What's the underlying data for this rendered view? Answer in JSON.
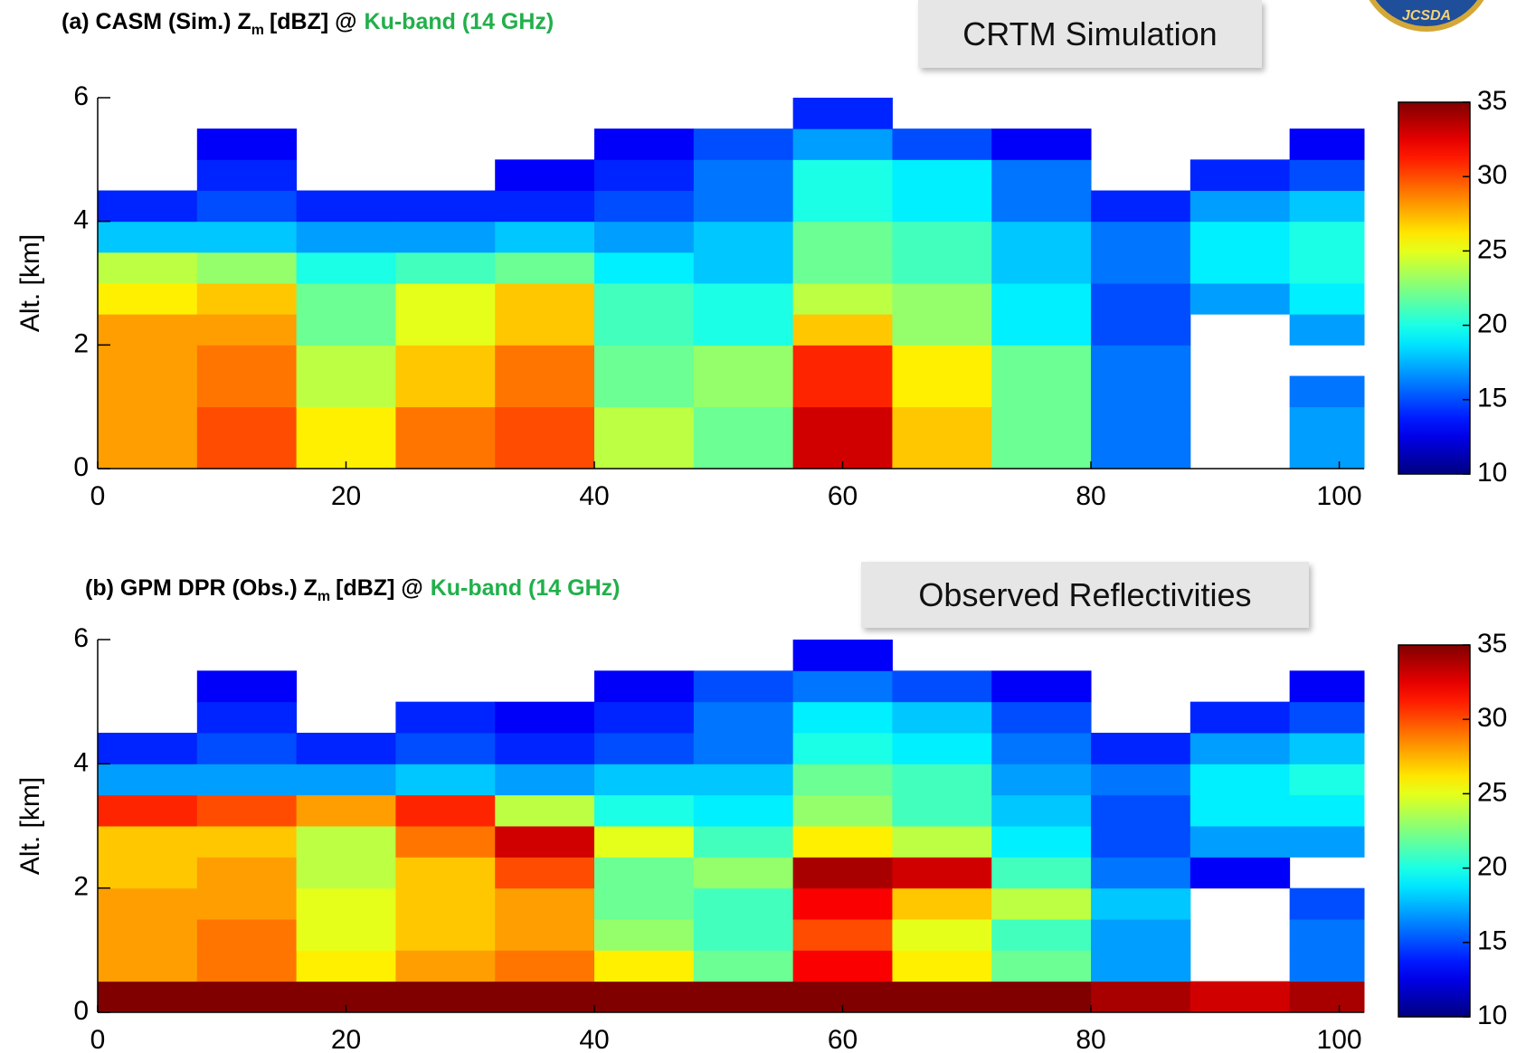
{
  "logo_text": "JCSDA",
  "chart_data": [
    {
      "type": "heatmap",
      "title_prefix": "(a) CASM (Sim.) Z",
      "title_sub": "m",
      "title_mid": "[dBZ] @",
      "title_highlight": "Ku-band (14 GHz)",
      "banner": "CRTM Simulation",
      "ylabel": "Alt. [km]",
      "xlim": [
        0,
        102
      ],
      "xticks": [
        0,
        20,
        40,
        60,
        80,
        100
      ],
      "ylim": [
        0,
        6
      ],
      "yticks": [
        0,
        2,
        4,
        6
      ],
      "clim": [
        10,
        35
      ],
      "cticks": [
        10,
        15,
        20,
        25,
        30,
        35
      ],
      "colormap": "jet",
      "x_bins": [
        0,
        8,
        16,
        24,
        32,
        40,
        48,
        56,
        64,
        72,
        80,
        88,
        96,
        102
      ],
      "y_bins": [
        0,
        0.5,
        1,
        1.5,
        2,
        2.5,
        3,
        3.5,
        4,
        4.5,
        5,
        5.5,
        6
      ],
      "values": [
        [
          28,
          28,
          28,
          28,
          28,
          26,
          24,
          18,
          14,
          null,
          null,
          null
        ],
        [
          30,
          30,
          29,
          29,
          28,
          27,
          23,
          18,
          15,
          14,
          13,
          null
        ],
        [
          26,
          26,
          24,
          24,
          22,
          22,
          20,
          17,
          14,
          null,
          null,
          null
        ],
        [
          29,
          29,
          27,
          27,
          25,
          25,
          21,
          17,
          14,
          null,
          null,
          null
        ],
        [
          30,
          30,
          29,
          29,
          27,
          27,
          22,
          18,
          14,
          13,
          null,
          null
        ],
        [
          24,
          24,
          22,
          22,
          21,
          21,
          19,
          17,
          15,
          14,
          13,
          null
        ],
        [
          22,
          22,
          23,
          23,
          20,
          20,
          18,
          18,
          16,
          16,
          15,
          null
        ],
        [
          33,
          33,
          31,
          31,
          27,
          24,
          22,
          22,
          20,
          20,
          17,
          14
        ],
        [
          27,
          27,
          26,
          26,
          23,
          23,
          21,
          21,
          19,
          19,
          15,
          null
        ],
        [
          22,
          22,
          22,
          22,
          19,
          19,
          18,
          18,
          16,
          16,
          13,
          null
        ],
        [
          16,
          16,
          16,
          16,
          15,
          15,
          16,
          16,
          14,
          null,
          null,
          null
        ],
        [
          null,
          null,
          null,
          null,
          null,
          17,
          19,
          19,
          17,
          14,
          null,
          null
        ],
        [
          17,
          17,
          16,
          null,
          17,
          19,
          20,
          20,
          18,
          15,
          13,
          null
        ]
      ]
    },
    {
      "type": "heatmap",
      "title_prefix": "(b) GPM DPR (Obs.) Z",
      "title_sub": "m",
      "title_mid": "[dBZ] @",
      "title_highlight": "Ku-band (14 GHz)",
      "banner": "Observed Reflectivities",
      "ylabel": "Alt. [km]",
      "xlim": [
        0,
        102
      ],
      "xticks": [
        0,
        20,
        40,
        60,
        80,
        100
      ],
      "ylim": [
        0,
        6
      ],
      "yticks": [
        0,
        2,
        4,
        6
      ],
      "clim": [
        10,
        35
      ],
      "cticks": [
        10,
        15,
        20,
        25,
        30,
        35
      ],
      "colormap": "jet",
      "x_bins": [
        0,
        8,
        16,
        24,
        32,
        40,
        48,
        56,
        64,
        72,
        80,
        88,
        96,
        102
      ],
      "y_bins": [
        0,
        0.5,
        1,
        1.5,
        2,
        2.5,
        3,
        3.5,
        4,
        4.5,
        5,
        5.5,
        6
      ],
      "values": [
        [
          35,
          28,
          28,
          28,
          27,
          27,
          31,
          17,
          14,
          null,
          null,
          null
        ],
        [
          35,
          29,
          29,
          28,
          28,
          27,
          30,
          17,
          15,
          14,
          13,
          null
        ],
        [
          35,
          26,
          25,
          25,
          24,
          24,
          28,
          17,
          14,
          null,
          null,
          null
        ],
        [
          35,
          28,
          27,
          27,
          27,
          29,
          31,
          18,
          15,
          14,
          null,
          null
        ],
        [
          35,
          29,
          28,
          28,
          30,
          33,
          24,
          17,
          14,
          13,
          null,
          null
        ],
        [
          35,
          26,
          23,
          22,
          22,
          25,
          20,
          18,
          15,
          14,
          13,
          null
        ],
        [
          35,
          22,
          21,
          21,
          23,
          21,
          19,
          18,
          16,
          16,
          15,
          null
        ],
        [
          35,
          32,
          30,
          32,
          34,
          26,
          23,
          22,
          20,
          19,
          16,
          13
        ],
        [
          35,
          26,
          25,
          27,
          33,
          24,
          21,
          21,
          19,
          18,
          15,
          null
        ],
        [
          35,
          22,
          21,
          24,
          21,
          19,
          18,
          17,
          16,
          15,
          13,
          null
        ],
        [
          34,
          17,
          17,
          18,
          16,
          15,
          15,
          16,
          14,
          null,
          null,
          null
        ],
        [
          33,
          null,
          null,
          null,
          13,
          17,
          19,
          19,
          17,
          14,
          null,
          null
        ],
        [
          34,
          16,
          16,
          15,
          null,
          17,
          19,
          20,
          18,
          15,
          13,
          null
        ]
      ]
    }
  ]
}
